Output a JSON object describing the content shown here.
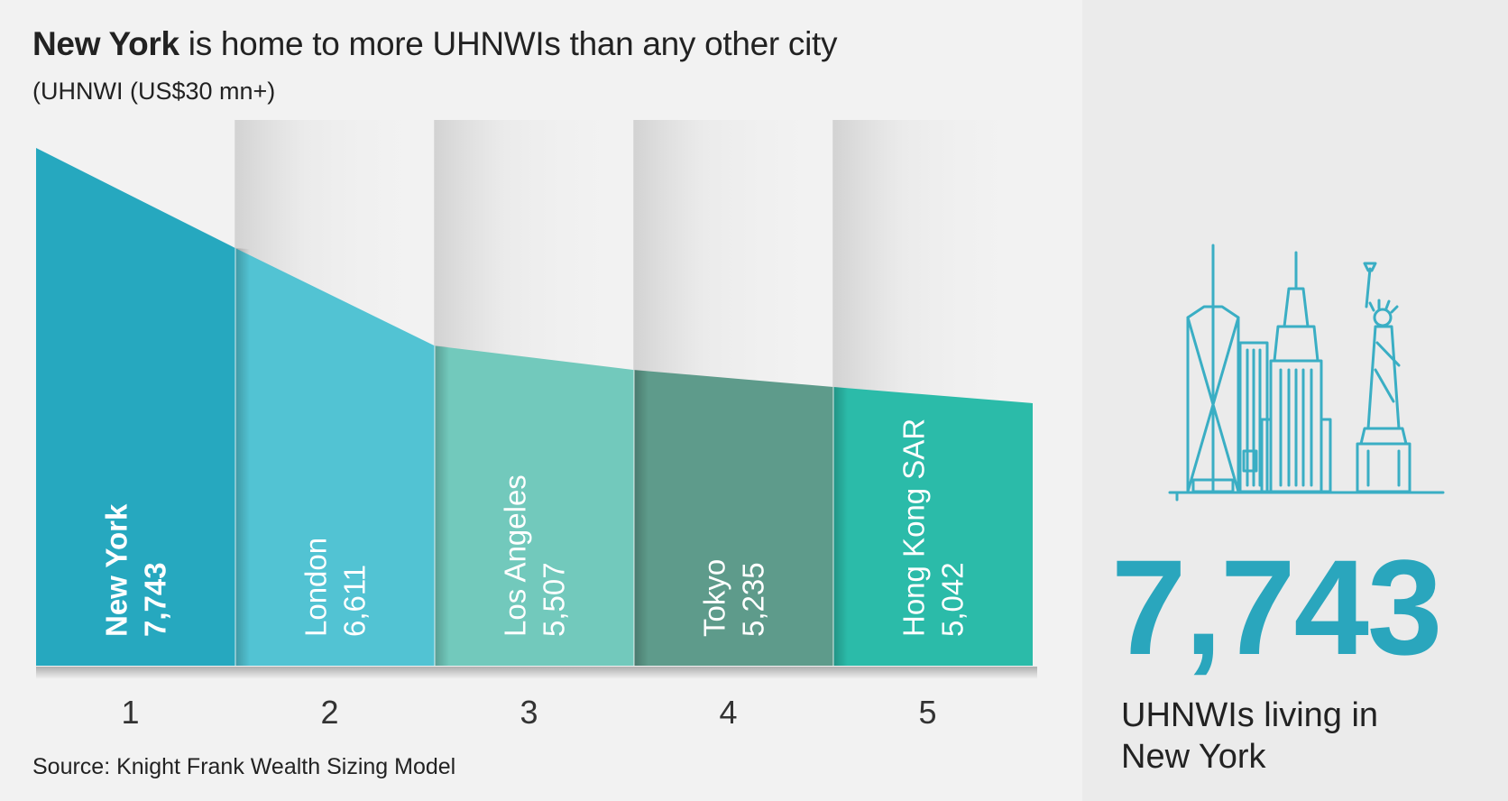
{
  "header": {
    "title_bold": "New York",
    "title_rest": " is home to more UHNWIs than any other city",
    "subtitle": "(UHNWI (US$30 mn+)"
  },
  "chart_data": {
    "type": "bar",
    "categories": [
      "1",
      "2",
      "3",
      "4",
      "5"
    ],
    "cities": [
      "New York",
      "London",
      "Los Angeles",
      "Tokyo",
      "Hong Kong SAR"
    ],
    "values": [
      7743,
      6611,
      5507,
      5235,
      5042
    ],
    "value_labels": [
      "7,743",
      "6,611",
      "5,507",
      "5,235",
      "5,042"
    ],
    "title": "New York is home to more UHNWIs than any other city",
    "xlabel": "",
    "ylabel": "",
    "colors": [
      "#26a8bf",
      "#52c3d3",
      "#72c9bc",
      "#5e9b8b",
      "#2bbba9"
    ],
    "grid": false,
    "legend": "none"
  },
  "source": "Source: Knight Frank Wealth Sizing Model",
  "highlight": {
    "number": "7,743",
    "caption": "UHNWIs living in New York",
    "icon": "new-york-skyline-icon",
    "color": "#2aa6bd"
  }
}
